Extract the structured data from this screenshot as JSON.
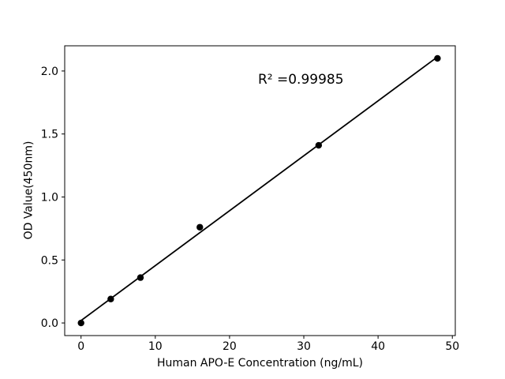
{
  "figure": {
    "background": "#ffffff",
    "foreground": "#000000"
  },
  "chart_data": {
    "type": "scatter",
    "title": "",
    "xlabel": "Human APO-E Concentration (ng/mL)",
    "ylabel": "OD Value(450nm)",
    "x": [
      0,
      4,
      8,
      16,
      32,
      48
    ],
    "y": [
      0.0,
      0.19,
      0.36,
      0.76,
      1.41,
      2.1
    ],
    "trendline": {
      "slope": 0.0436,
      "intercept": 0.019,
      "x_start": 0,
      "x_end": 48
    },
    "annotation": {
      "text": "R² =0.99985",
      "x": 29.6,
      "y": 1.93
    },
    "xlim": [
      -2.2,
      50.4
    ],
    "ylim": [
      -0.1,
      2.2
    ],
    "xticks": [
      0,
      10,
      20,
      30,
      40,
      50
    ],
    "xtick_labels": [
      "0",
      "10",
      "20",
      "30",
      "40",
      "50"
    ],
    "yticks": [
      0,
      0.5,
      1.0,
      1.5,
      2.0
    ],
    "ytick_labels": [
      "0.0",
      "0.5",
      "1.0",
      "1.5",
      "2.0"
    ],
    "grid": false,
    "legend": null,
    "marker_color": "#000000",
    "line_color": "#000000"
  }
}
